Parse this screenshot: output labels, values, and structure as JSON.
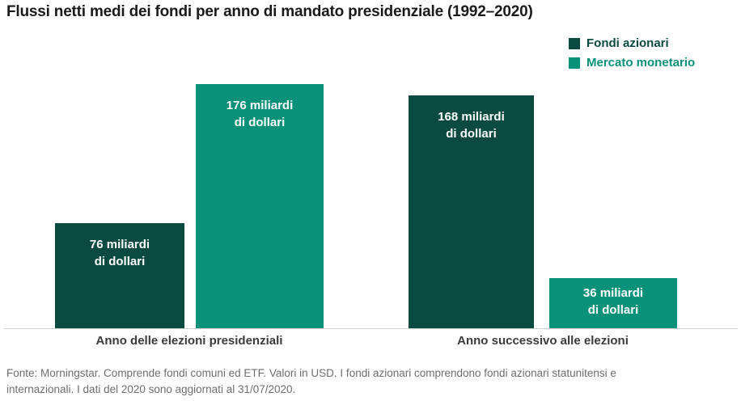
{
  "title": "Flussi netti medi dei fondi per anno di mandato presidenziale (1992–2020)",
  "footer": "Fonte: Morningstar. Comprende fondi comuni ed ETF. Valori in USD. I fondi azionari comprendono fondi azionari statunitensi e internazionali. I dati del 2020 sono aggiornati al 31/07/2020.",
  "colors": {
    "equity_funds": "#0B4A40",
    "money_market": "#0A9179",
    "axis_line": "#cdcfd0",
    "footer_text": "#6d6e70",
    "title_text": "#1a1a1a"
  },
  "legend": {
    "position": "top-right",
    "items": [
      {
        "label": "Fondi azionari",
        "color": "#0B4A40"
      },
      {
        "label": "Mercato monetario",
        "color": "#0A9179"
      }
    ]
  },
  "chart_data": {
    "type": "bar",
    "title": "Flussi netti medi dei fondi per anno di mandato presidenziale (1992–2020)",
    "categories": [
      "Anno delle elezioni presidenziali",
      "Anno successivo alle elezioni"
    ],
    "series": [
      {
        "name": "Fondi azionari",
        "color": "#0B4A40",
        "values": [
          76,
          168
        ]
      },
      {
        "name": "Mercato monetario",
        "color": "#0A9179",
        "values": [
          176,
          36
        ]
      }
    ],
    "value_label_template": "{value} miliardi\ndi dollari",
    "unit": "miliardi di dollari (USD)",
    "ylim": [
      0,
      180
    ],
    "grid": false,
    "legend_position": "top-right"
  }
}
